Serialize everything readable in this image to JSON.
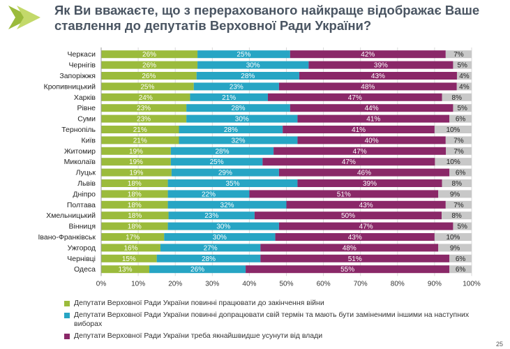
{
  "title": "Як Ви вважаєте, що з перерахованого найкраще відображає Ваше ставлення до депутатів Верховної Ради України?",
  "colors": {
    "green": "#9bbb3c",
    "blue": "#27a5c4",
    "purple": "#8a2868",
    "gray": "#c8c8c8",
    "title": "#4a5562"
  },
  "chart_data": {
    "type": "bar",
    "orientation": "horizontal",
    "stacked": true,
    "percent_stacked": true,
    "title": "Як Ви вважаєте, що з перерахованого найкраще відображає Ваше ставлення до депутатів Верховної Ради України?",
    "categories": [
      "Черкаси",
      "Чернігів",
      "Запоріжжя",
      "Кропивницький",
      "Харків",
      "Рівне",
      "Суми",
      "Тернопіль",
      "Київ",
      "Житомир",
      "Миколаїв",
      "Луцьк",
      "Львів",
      "Дніпро",
      "Полтава",
      "Хмельницький",
      "Вінниця",
      "Івано-Франківськ",
      "Ужгород",
      "Чернівці",
      "Одеса"
    ],
    "series": [
      {
        "name": "Депутати Верховної Ради України повинні працювати до закінчення війни",
        "color": "#9bbb3c",
        "values": [
          26,
          26,
          26,
          25,
          24,
          23,
          23,
          21,
          21,
          19,
          19,
          19,
          18,
          18,
          18,
          18,
          18,
          17,
          16,
          15,
          13
        ]
      },
      {
        "name": "Депутати Верховної Ради України повинні допрацювати свій термін та мають  бути замінeними іншими на наступних виборах",
        "color": "#27a5c4",
        "values": [
          25,
          30,
          28,
          23,
          21,
          28,
          30,
          28,
          32,
          28,
          25,
          29,
          35,
          22,
          32,
          23,
          30,
          30,
          27,
          28,
          26
        ]
      },
      {
        "name": "Депутати Верховної Ради України треба якнайшвидше усунути від влади",
        "color": "#8a2868",
        "values": [
          42,
          39,
          43,
          48,
          47,
          44,
          41,
          41,
          40,
          47,
          47,
          46,
          39,
          51,
          43,
          50,
          47,
          43,
          48,
          51,
          55
        ]
      },
      {
        "name": "",
        "color": "#c8c8c8",
        "values": [
          7,
          5,
          4,
          4,
          8,
          5,
          6,
          10,
          7,
          7,
          10,
          6,
          8,
          9,
          7,
          8,
          5,
          10,
          9,
          6,
          6
        ]
      }
    ],
    "labels": [
      [
        "26%",
        "25%",
        "42%",
        "7%"
      ],
      [
        "26%",
        "30%",
        "39%",
        "5%"
      ],
      [
        "26%",
        "28%",
        "43%",
        "4%"
      ],
      [
        "25%",
        "23%",
        "48%",
        "4%"
      ],
      [
        "24%",
        "21%",
        "47%",
        "8%"
      ],
      [
        "23%",
        "28%",
        "44%",
        "5%"
      ],
      [
        "23%",
        "30%",
        "41%",
        "6%"
      ],
      [
        "21%",
        "28%",
        "41%",
        "10%"
      ],
      [
        "21%",
        "32%",
        "40%",
        "7%"
      ],
      [
        "19%",
        "28%",
        "47%",
        "7%"
      ],
      [
        "19%",
        "25%",
        "47%",
        "10%"
      ],
      [
        "19%",
        "29%",
        "46%",
        "6%"
      ],
      [
        "18%",
        "35%",
        "39%",
        "8%"
      ],
      [
        "18%",
        "22%",
        "51%",
        "9%"
      ],
      [
        "18%",
        "32%",
        "43%",
        "7%"
      ],
      [
        "18%",
        "23%",
        "50%",
        "8%"
      ],
      [
        "18%",
        "30%",
        "47%",
        "5%"
      ],
      [
        "17%",
        "30%",
        "43%",
        "10%"
      ],
      [
        "16%",
        "27%",
        "48%",
        "9%"
      ],
      [
        "15%",
        "28%",
        "51%",
        "6%"
      ],
      [
        "13%",
        "26%",
        "55%",
        "6%"
      ]
    ],
    "xlim": [
      0,
      100
    ],
    "xticks": [
      "0%",
      "10%",
      "20%",
      "30%",
      "40%",
      "50%",
      "60%",
      "70%",
      "80%",
      "90%",
      "100%"
    ],
    "legend_position": "bottom"
  },
  "legend": [
    "Депутати Верховної Ради України повинні працювати до закінчення війни",
    "Депутати Верховної Ради України повинні допрацювати свій термін та мають  бути замінeними іншими на наступних виборах",
    "Депутати Верховної Ради України треба якнайшвидше усунути від влади"
  ],
  "page_number": "25"
}
